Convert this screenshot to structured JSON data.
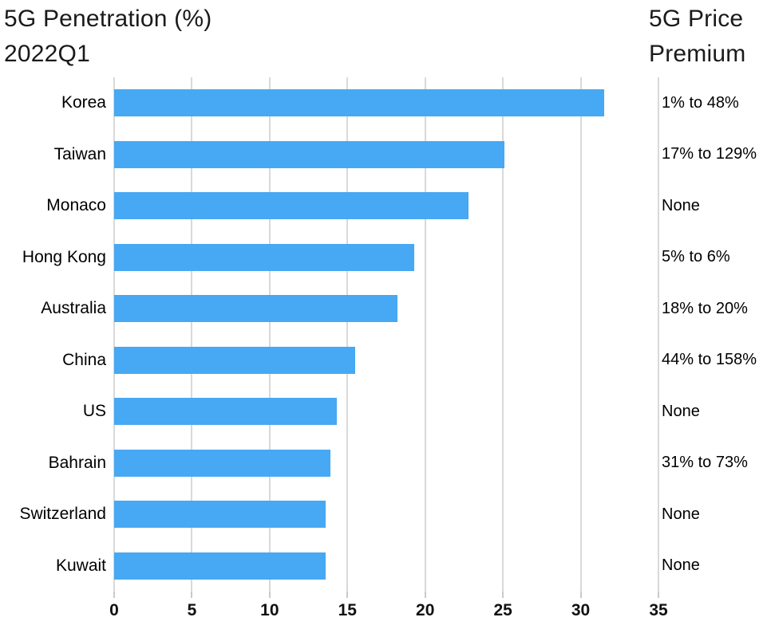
{
  "header": {
    "title_line1": "5G Penetration (%)",
    "title_line2": "2022Q1",
    "right_title_line1": "5G Price",
    "right_title_line2": "Premium"
  },
  "chart_data": {
    "type": "bar",
    "orientation": "horizontal",
    "title": "5G Penetration (%) 2022Q1",
    "right_column_title": "5G Price Premium",
    "categories": [
      "Korea",
      "Taiwan",
      "Monaco",
      "Hong Kong",
      "Australia",
      "China",
      "US",
      "Bahrain",
      "Switzerland",
      "Kuwait"
    ],
    "values": [
      31.5,
      25.1,
      22.8,
      19.3,
      18.2,
      15.5,
      14.3,
      13.9,
      13.6,
      13.6
    ],
    "price_premiums": [
      "1% to 48%",
      "17% to 129%",
      "None",
      "5% to 6%",
      "18% to 20%",
      "44% to 158%",
      "None",
      "31% to 73%",
      "None",
      "None"
    ],
    "xlabel": "",
    "ylabel": "",
    "xlim": [
      0,
      35
    ],
    "x_ticks": [
      0,
      5,
      10,
      15,
      20,
      25,
      30,
      35
    ],
    "grid": "vertical",
    "legend": "none",
    "bar_color": "#47a8f3",
    "gridline_color": "#d9d9d9",
    "tick_color": "#c9c9c9",
    "text_color": "#000000",
    "title_color": "#1a1a1a"
  }
}
